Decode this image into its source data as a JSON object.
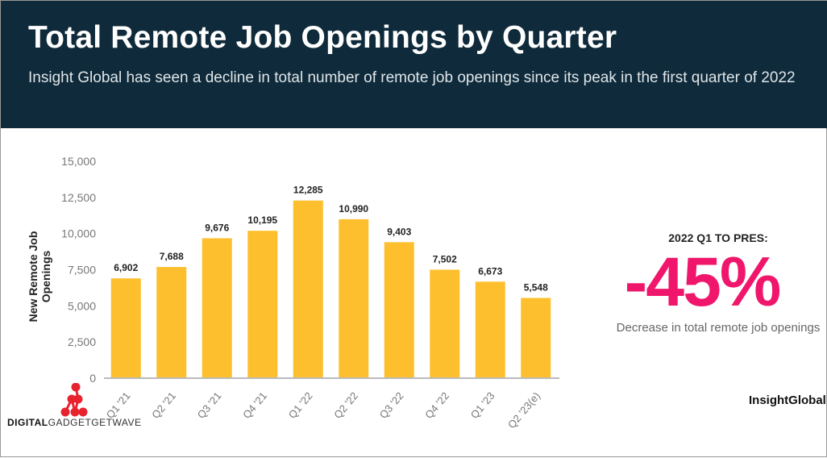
{
  "header": {
    "title": "Total Remote Job Openings by Quarter",
    "subtitle": "Insight Global has seen a decline in total number of remote job openings since its peak in the first quarter of 2022"
  },
  "chart_data": {
    "type": "bar",
    "title": "Total Remote Job Openings by Quarter",
    "xlabel": "",
    "ylabel": "New Remote Job Openings",
    "categories": [
      "Q1 '21",
      "Q2 '21",
      "Q3 '21",
      "Q4 '21",
      "Q1 '22",
      "Q2 '22",
      "Q3 '22",
      "Q4 '22",
      "Q1 '23",
      "Q2 '23(e)"
    ],
    "values": [
      6902,
      7688,
      9676,
      10195,
      12285,
      10990,
      9403,
      7502,
      6673,
      5548
    ],
    "data_labels": [
      "6,902",
      "7,688",
      "9,676",
      "10,195",
      "12,285",
      "10,990",
      "9,403",
      "7,502",
      "6,673",
      "5,548"
    ],
    "ylim": [
      0,
      15000
    ],
    "yticks": [
      0,
      2500,
      5000,
      7500,
      10000,
      12500,
      15000
    ],
    "ytick_labels": [
      "0",
      "2,500",
      "5,000",
      "7,500",
      "10,000",
      "12,500",
      "15,000"
    ],
    "grid": false,
    "bar_color": "#fdbf2d"
  },
  "callout": {
    "heading": "2022 Q1 TO PRES:",
    "value": "-45%",
    "description": "Decrease in total remote job openings",
    "color": "#f0166b"
  },
  "brand": {
    "logo": "InsightGlobal"
  },
  "watermark": {
    "bold": "DIGITAL",
    "rest": "GADGETGETWAVE"
  }
}
